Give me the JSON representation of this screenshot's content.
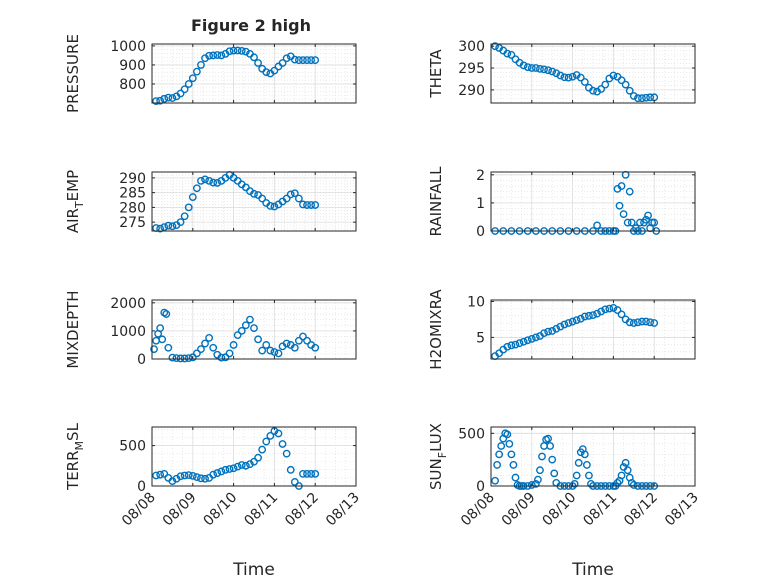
{
  "figure": {
    "title": "Figure 2 high"
  },
  "style": {
    "marker_color": "#0072BD",
    "axis_color": "#262626",
    "grid_color": "#dcdcdc"
  },
  "chart_data": [
    {
      "type": "scatter",
      "ylabel": "PRESSURE",
      "ylim": [
        700,
        1010
      ],
      "yticks": [
        800,
        900,
        1000
      ],
      "xlim": [
        "08/08",
        "08/13"
      ],
      "xticks": [
        "08/08",
        "08/09",
        "08/10",
        "08/11",
        "08/12",
        "08/13"
      ],
      "grid": true,
      "x": [
        0.1,
        0.2,
        0.3,
        0.4,
        0.5,
        0.6,
        0.7,
        0.8,
        0.9,
        1.0,
        1.1,
        1.2,
        1.3,
        1.4,
        1.5,
        1.6,
        1.7,
        1.8,
        1.9,
        2.0,
        2.1,
        2.2,
        2.3,
        2.4,
        2.5,
        2.6,
        2.7,
        2.8,
        2.9,
        3.0,
        3.1,
        3.2,
        3.3,
        3.4,
        3.5,
        3.6,
        3.7,
        3.8,
        3.9,
        4.0
      ],
      "y": [
        710,
        712,
        722,
        728,
        726,
        735,
        750,
        772,
        800,
        830,
        865,
        900,
        935,
        948,
        950,
        952,
        950,
        958,
        972,
        975,
        976,
        974,
        970,
        958,
        940,
        910,
        880,
        862,
        855,
        870,
        892,
        910,
        935,
        945,
        928,
        925,
        925,
        925,
        925,
        925
      ]
    },
    {
      "type": "scatter",
      "ylabel": "THETA",
      "ylim": [
        287,
        300.5
      ],
      "yticks": [
        290,
        295,
        300
      ],
      "xlim": [
        "08/08",
        "08/13"
      ],
      "xticks": [
        "08/08",
        "08/09",
        "08/10",
        "08/11",
        "08/12",
        "08/13"
      ],
      "grid": true,
      "x": [
        0.1,
        0.2,
        0.3,
        0.4,
        0.5,
        0.6,
        0.7,
        0.8,
        0.9,
        1.0,
        1.1,
        1.2,
        1.3,
        1.4,
        1.5,
        1.6,
        1.7,
        1.8,
        1.9,
        2.0,
        2.1,
        2.2,
        2.3,
        2.4,
        2.5,
        2.6,
        2.7,
        2.8,
        2.9,
        3.0,
        3.1,
        3.2,
        3.3,
        3.4,
        3.5,
        3.6,
        3.7,
        3.8,
        3.9,
        4.0
      ],
      "y": [
        300,
        299.6,
        299,
        298.3,
        298,
        297,
        296.2,
        295.6,
        295.2,
        295,
        295,
        294.8,
        294.7,
        294.5,
        294.2,
        293.8,
        293.3,
        292.9,
        292.8,
        293,
        293.4,
        292.8,
        291.8,
        290.5,
        289.8,
        289.6,
        290.2,
        291.2,
        292.6,
        293.3,
        293,
        292.2,
        291.2,
        289.8,
        288.6,
        288.1,
        288.1,
        288.2,
        288.3,
        288.3
      ]
    },
    {
      "type": "scatter",
      "ylabel": "AIR_TEMP",
      "ylim": [
        272,
        292
      ],
      "yticks": [
        275,
        280,
        285,
        290
      ],
      "xlim": [
        "08/08",
        "08/13"
      ],
      "xticks": [
        "08/08",
        "08/09",
        "08/10",
        "08/11",
        "08/12",
        "08/13"
      ],
      "grid": true,
      "x": [
        0.1,
        0.2,
        0.3,
        0.4,
        0.5,
        0.6,
        0.7,
        0.8,
        0.9,
        1.0,
        1.1,
        1.2,
        1.3,
        1.4,
        1.5,
        1.6,
        1.7,
        1.8,
        1.9,
        2.0,
        2.1,
        2.2,
        2.3,
        2.4,
        2.5,
        2.6,
        2.7,
        2.8,
        2.9,
        3.0,
        3.1,
        3.2,
        3.3,
        3.4,
        3.5,
        3.6,
        3.7,
        3.8,
        3.9,
        4.0
      ],
      "y": [
        273,
        272.8,
        273.3,
        273.8,
        273.6,
        274,
        275,
        277,
        280,
        283.5,
        286.5,
        289,
        289.5,
        289,
        288.4,
        288.3,
        289,
        290,
        291,
        290,
        289,
        287.8,
        286.8,
        285.5,
        284.6,
        284.2,
        283,
        281.5,
        280.5,
        280.3,
        281,
        282,
        283,
        284.4,
        284.8,
        283,
        281,
        280.8,
        280.8,
        280.8
      ]
    },
    {
      "type": "scatter",
      "ylabel": "RAINFALL",
      "ylim": [
        0,
        2.1
      ],
      "yticks": [
        0,
        1,
        2
      ],
      "xlim": [
        "08/08",
        "08/13"
      ],
      "xticks": [
        "08/08",
        "08/09",
        "08/10",
        "08/11",
        "08/12",
        "08/13"
      ],
      "grid": true,
      "x": [
        0.1,
        0.3,
        0.5,
        0.7,
        0.9,
        1.1,
        1.3,
        1.5,
        1.7,
        1.9,
        2.1,
        2.3,
        2.5,
        2.6,
        2.7,
        2.8,
        2.9,
        3.0,
        3.05,
        3.1,
        3.15,
        3.2,
        3.25,
        3.3,
        3.35,
        3.4,
        3.45,
        3.5,
        3.55,
        3.6,
        3.65,
        3.7,
        3.75,
        3.8,
        3.85,
        3.9,
        3.95,
        4.0,
        4.05
      ],
      "y": [
        0,
        0,
        0,
        0,
        0,
        0,
        0,
        0,
        0,
        0,
        0,
        0,
        0,
        0.2,
        0,
        0,
        0,
        0,
        0,
        1.5,
        0.9,
        1.6,
        0.6,
        2.0,
        0.3,
        1.4,
        0.3,
        0,
        0.1,
        0,
        0.3,
        0,
        0.3,
        0.4,
        0.55,
        0.1,
        0.3,
        0.3,
        0
      ]
    },
    {
      "type": "scatter",
      "ylabel": "MIXDEPTH",
      "ylim": [
        0,
        2100
      ],
      "yticks": [
        0,
        1000,
        2000
      ],
      "xlim": [
        "08/08",
        "08/13"
      ],
      "xticks": [
        "08/08",
        "08/09",
        "08/10",
        "08/11",
        "08/12",
        "08/13"
      ],
      "grid": true,
      "x": [
        0.05,
        0.1,
        0.15,
        0.2,
        0.25,
        0.3,
        0.35,
        0.4,
        0.5,
        0.6,
        0.7,
        0.8,
        0.9,
        1.0,
        1.1,
        1.2,
        1.3,
        1.4,
        1.5,
        1.6,
        1.7,
        1.8,
        1.9,
        2.0,
        2.1,
        2.2,
        2.3,
        2.4,
        2.5,
        2.6,
        2.7,
        2.8,
        2.9,
        3.0,
        3.1,
        3.2,
        3.3,
        3.4,
        3.5,
        3.6,
        3.7,
        3.8,
        3.9,
        4.0
      ],
      "y": [
        350,
        650,
        900,
        1100,
        700,
        1650,
        1600,
        400,
        50,
        30,
        20,
        20,
        30,
        60,
        200,
        350,
        550,
        750,
        400,
        150,
        50,
        60,
        200,
        500,
        850,
        1000,
        1200,
        1400,
        1100,
        700,
        300,
        500,
        300,
        250,
        200,
        450,
        550,
        500,
        400,
        650,
        800,
        650,
        500,
        400
      ]
    },
    {
      "type": "scatter",
      "ylabel": "H2OMIXRA",
      "ylim": [
        2,
        10.2
      ],
      "yticks": [
        5,
        10
      ],
      "xlim": [
        "08/08",
        "08/13"
      ],
      "xticks": [
        "08/08",
        "08/09",
        "08/10",
        "08/11",
        "08/12",
        "08/13"
      ],
      "grid": true,
      "x": [
        0.1,
        0.2,
        0.3,
        0.4,
        0.5,
        0.6,
        0.7,
        0.8,
        0.9,
        1.0,
        1.1,
        1.2,
        1.3,
        1.4,
        1.5,
        1.6,
        1.7,
        1.8,
        1.9,
        2.0,
        2.1,
        2.2,
        2.3,
        2.4,
        2.5,
        2.6,
        2.7,
        2.8,
        2.9,
        3.0,
        3.1,
        3.2,
        3.3,
        3.4,
        3.5,
        3.6,
        3.7,
        3.8,
        3.9,
        4.0
      ],
      "y": [
        2.4,
        2.8,
        3.3,
        3.7,
        3.9,
        4.0,
        4.2,
        4.4,
        4.6,
        4.8,
        5.0,
        5.2,
        5.6,
        5.8,
        5.9,
        6.2,
        6.5,
        6.8,
        7.0,
        7.2,
        7.4,
        7.6,
        7.9,
        8.0,
        8.1,
        8.3,
        8.6,
        8.9,
        9.0,
        9.1,
        8.8,
        8.2,
        7.5,
        7.1,
        7.0,
        7.1,
        7.2,
        7.2,
        7.1,
        7.0
      ]
    },
    {
      "type": "scatter",
      "ylabel": "TERR_MSL",
      "ylim": [
        0,
        730
      ],
      "yticks": [
        0,
        500
      ],
      "xlim": [
        "08/08",
        "08/13"
      ],
      "xticks": [
        "08/08",
        "08/09",
        "08/10",
        "08/11",
        "08/12",
        "08/13"
      ],
      "grid": true,
      "xlabel": "Time",
      "xtick_rotation": 45,
      "x": [
        0.1,
        0.2,
        0.3,
        0.4,
        0.5,
        0.6,
        0.7,
        0.8,
        0.9,
        1.0,
        1.1,
        1.2,
        1.3,
        1.4,
        1.5,
        1.6,
        1.7,
        1.8,
        1.9,
        2.0,
        2.1,
        2.2,
        2.3,
        2.4,
        2.5,
        2.6,
        2.7,
        2.8,
        2.9,
        3.0,
        3.1,
        3.2,
        3.3,
        3.4,
        3.5,
        3.6,
        3.7,
        3.8,
        3.9,
        4.0
      ],
      "y": [
        130,
        140,
        150,
        100,
        60,
        90,
        120,
        130,
        135,
        125,
        110,
        95,
        90,
        100,
        140,
        160,
        180,
        200,
        210,
        220,
        240,
        260,
        250,
        270,
        300,
        350,
        450,
        550,
        620,
        680,
        650,
        520,
        400,
        200,
        50,
        0,
        150,
        150,
        150,
        150
      ]
    },
    {
      "type": "scatter",
      "ylabel": "SUN_FLUX",
      "ylim": [
        0,
        560
      ],
      "yticks": [
        0,
        500
      ],
      "xlim": [
        "08/08",
        "08/13"
      ],
      "xticks": [
        "08/08",
        "08/09",
        "08/10",
        "08/11",
        "08/12",
        "08/13"
      ],
      "grid": true,
      "xlabel": "Time",
      "xtick_rotation": 45,
      "x": [
        0.1,
        0.15,
        0.2,
        0.25,
        0.3,
        0.35,
        0.4,
        0.45,
        0.5,
        0.55,
        0.6,
        0.65,
        0.7,
        0.75,
        0.8,
        0.9,
        1.0,
        1.1,
        1.15,
        1.2,
        1.25,
        1.3,
        1.35,
        1.4,
        1.45,
        1.5,
        1.55,
        1.6,
        1.7,
        1.8,
        1.9,
        2.0,
        2.05,
        2.1,
        2.15,
        2.2,
        2.25,
        2.3,
        2.35,
        2.4,
        2.45,
        2.5,
        2.6,
        2.7,
        2.8,
        2.9,
        3.0,
        3.05,
        3.1,
        3.15,
        3.2,
        3.25,
        3.3,
        3.35,
        3.4,
        3.45,
        3.5,
        3.6,
        3.7,
        3.8,
        3.9,
        4.0
      ],
      "y": [
        50,
        200,
        300,
        380,
        450,
        500,
        490,
        400,
        300,
        200,
        80,
        10,
        0,
        0,
        0,
        0,
        10,
        20,
        60,
        150,
        280,
        380,
        440,
        450,
        380,
        250,
        120,
        30,
        0,
        0,
        0,
        0,
        20,
        100,
        220,
        320,
        350,
        300,
        200,
        100,
        20,
        0,
        0,
        0,
        0,
        0,
        0,
        0,
        30,
        50,
        100,
        180,
        220,
        150,
        80,
        30,
        10,
        0,
        0,
        0,
        0,
        0
      ]
    }
  ]
}
